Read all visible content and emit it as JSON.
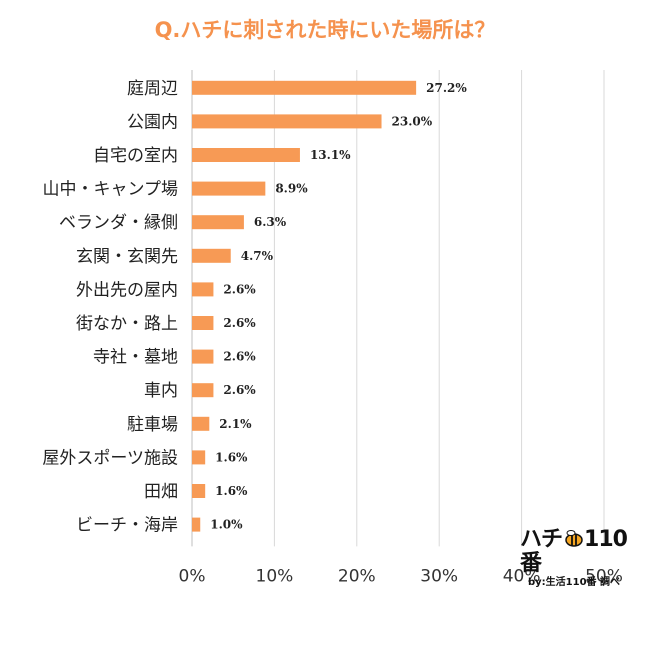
{
  "chart_data": {
    "type": "bar",
    "orientation": "horizontal",
    "title": "Q.ハチに刺された時にいた場所は？",
    "categories": [
      "庭周辺",
      "公園内",
      "自宅の室内",
      "山中・キャンプ場",
      "ベランダ・縁側",
      "玄関・玄関先",
      "外出先の屋内",
      "街なか・路上",
      "寺社・墓地",
      "車内",
      "駐車場",
      "屋外スポーツ施設",
      "田畑",
      "ビーチ・海岸"
    ],
    "values": [
      27.2,
      23.0,
      13.1,
      8.9,
      6.3,
      4.7,
      2.6,
      2.6,
      2.6,
      2.6,
      2.1,
      1.6,
      1.6,
      1.0
    ],
    "value_labels": [
      "27.2%",
      "23.0%",
      "13.1%",
      "8.9%",
      "6.3%",
      "4.7%",
      "2.6%",
      "2.6%",
      "2.6%",
      "2.6%",
      "2.1%",
      "1.6%",
      "1.6%",
      "1.0%"
    ],
    "xlim": [
      0,
      50
    ],
    "x_ticks": [
      "0%",
      "10%",
      "20%",
      "30%",
      "40%",
      "50%"
    ],
    "grid": true,
    "bar_color": "#f79a55",
    "grid_color": "#d9d9d9"
  },
  "logo": {
    "main_text": "ハチ",
    "main_number": "110番",
    "sub_text": "by:生活110番 調べ"
  }
}
